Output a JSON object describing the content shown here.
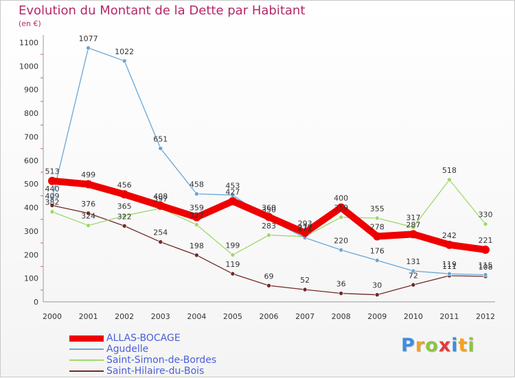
{
  "chart_data": {
    "type": "line",
    "title": "Evolution du Montant de la Dette par Habitant",
    "subtitle": "(en €)",
    "xlabel": "",
    "ylabel": "",
    "categories": [
      "2000",
      "2001",
      "2002",
      "2003",
      "2004",
      "2005",
      "2006",
      "2007",
      "2008",
      "2009",
      "2010",
      "2011",
      "2012"
    ],
    "ylim": [
      0,
      1100
    ],
    "yticks": [
      0,
      100,
      200,
      300,
      400,
      500,
      600,
      700,
      800,
      900,
      1000,
      1100
    ],
    "grid": false,
    "legend_position": "bottom-left",
    "series": [
      {
        "name": "ALLAS-BOCAGE",
        "color": "#ee0000",
        "values": [
          513,
          499,
          456,
          408,
          359,
          427,
          360,
          293,
          400,
          278,
          287,
          242,
          221
        ]
      },
      {
        "name": "Agudelle",
        "color": "#6aa6d6",
        "values": [
          440,
          1077,
          1022,
          651,
          458,
          453,
          350,
          272,
          220,
          176,
          131,
          119,
          115
        ]
      },
      {
        "name": "Saint-Simon-de-Bordes",
        "color": "#9ed86a",
        "values": [
          382,
          324,
          365,
          397,
          327,
          199,
          283,
          277,
          359,
          355,
          317,
          518,
          330
        ]
      },
      {
        "name": "Saint-Hilaire-du-Bois",
        "color": "#702a2a",
        "values": [
          409,
          376,
          322,
          254,
          198,
          119,
          69,
          52,
          36,
          30,
          72,
          111,
          108
        ]
      }
    ]
  },
  "branding": {
    "logo_letters": [
      {
        "ch": "P",
        "color": "#3d8de0"
      },
      {
        "ch": "r",
        "color": "#f2a21e"
      },
      {
        "ch": "o",
        "color": "#8cc63f"
      },
      {
        "ch": "x",
        "color": "#e23b3b"
      },
      {
        "ch": "i",
        "color": "#3d8de0"
      },
      {
        "ch": "t",
        "color": "#f2a21e"
      },
      {
        "ch": "i",
        "color": "#8cc63f"
      }
    ]
  }
}
